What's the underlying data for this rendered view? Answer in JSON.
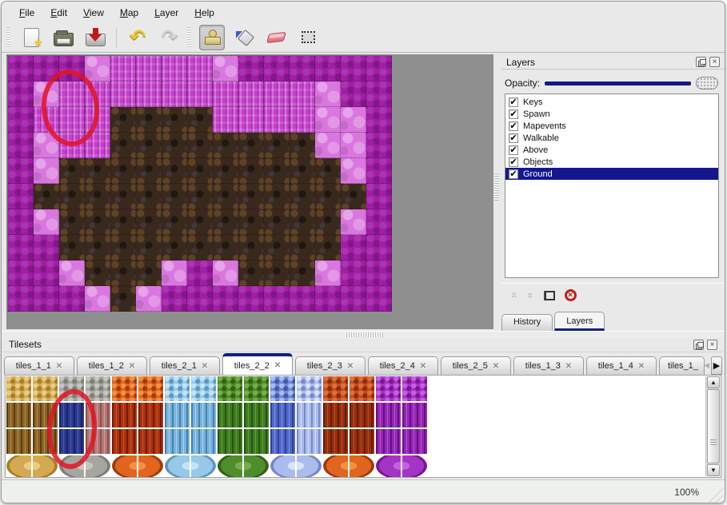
{
  "menu_bar": {
    "items": [
      {
        "label": "File"
      },
      {
        "label": "Edit"
      },
      {
        "label": "View"
      },
      {
        "label": "Map"
      },
      {
        "label": "Layer"
      },
      {
        "label": "Help"
      }
    ]
  },
  "toolbar": {
    "buttons": [
      {
        "name": "new-file",
        "icon": "new",
        "selected": false,
        "group": 1
      },
      {
        "name": "open-file",
        "icon": "open",
        "selected": false,
        "group": 1
      },
      {
        "name": "save-file",
        "icon": "save",
        "selected": false,
        "group": 1
      },
      {
        "name": "undo",
        "icon": "undo",
        "glyph": "↶",
        "selected": false,
        "group": 2
      },
      {
        "name": "redo",
        "icon": "redo",
        "glyph": "↷",
        "selected": false,
        "group": 2
      },
      {
        "name": "stamp-tool",
        "icon": "stamp",
        "selected": true,
        "group": 3
      },
      {
        "name": "fill-tool",
        "icon": "fill",
        "selected": false,
        "group": 3
      },
      {
        "name": "eraser-tool",
        "icon": "eraser",
        "selected": false,
        "group": 3
      },
      {
        "name": "select-tool",
        "icon": "select",
        "selected": false,
        "group": 3
      }
    ]
  },
  "map_view": {
    "background": "#8f8f8f",
    "tile_size": 32,
    "tile_colors": {
      "D": "#a01ea6",
      "M": "#c340ca",
      "L": "#d977df",
      "B": "#39291d"
    },
    "grid": [
      "DDDLMMMMLDDDDDD",
      "DLMMMMMMMMMMLDD",
      "DMMMBBBBMMMMLLD",
      "DLMMBBBBBBBBLLD",
      "DLBBBBBBBBBBBLD",
      "DBBBBBBBBBBBBBD",
      "DLBBBBBBBBBBBLD",
      "DDBBBBBBBBBBBDD",
      "DDLBBBLDLBBBLDD",
      "DDDLBLDDDDDDDDD"
    ],
    "annotation_color": "#e01426"
  },
  "layers_panel": {
    "title": "Layers",
    "opacity_label": "Opacity:",
    "layers": [
      {
        "label": "Keys",
        "checked": true,
        "selected": false
      },
      {
        "label": "Spawn",
        "checked": true,
        "selected": false
      },
      {
        "label": "Mapevents",
        "checked": true,
        "selected": false
      },
      {
        "label": "Walkable",
        "checked": true,
        "selected": false
      },
      {
        "label": "Above",
        "checked": true,
        "selected": false
      },
      {
        "label": "Objects",
        "checked": true,
        "selected": false
      },
      {
        "label": "Ground",
        "checked": true,
        "selected": true
      }
    ],
    "selection_color": "#13178c",
    "bottom_tabs": [
      {
        "label": "History",
        "active": false
      },
      {
        "label": "Layers",
        "active": true
      }
    ]
  },
  "tilesets_panel": {
    "title": "Tilesets",
    "tabs": [
      {
        "label": "tiles_1_1",
        "active": false,
        "truncated": false
      },
      {
        "label": "tiles_1_2",
        "active": false,
        "truncated": false
      },
      {
        "label": "tiles_2_1",
        "active": false,
        "truncated": false
      },
      {
        "label": "tiles_2_2",
        "active": true,
        "truncated": false
      },
      {
        "label": "tiles_2_3",
        "active": false,
        "truncated": false
      },
      {
        "label": "tiles_2_4",
        "active": false,
        "truncated": false
      },
      {
        "label": "tiles_2_5",
        "active": false,
        "truncated": false
      },
      {
        "label": "tiles_1_3",
        "active": false,
        "truncated": false
      },
      {
        "label": "tiles_1_4",
        "active": false,
        "truncated": false
      },
      {
        "label": "tiles_1_",
        "active": false,
        "truncated": true
      }
    ],
    "palette": {
      "tan": [
        "#d4a952",
        "#e8cc84",
        "#a87f2c"
      ],
      "gray": [
        "#a6a6a0",
        "#c6c6c0",
        "#7e7e78"
      ],
      "orange": [
        "#e0651e",
        "#f49040",
        "#a03c0a"
      ],
      "sky": [
        "#96c9e8",
        "#c4e4f4",
        "#5e98c0"
      ],
      "green": [
        "#4e8c2c",
        "#74ae4a",
        "#336016"
      ],
      "crystal": [
        "#7088d8",
        "#a8bcf0",
        "#4258a8"
      ],
      "crystalLt": [
        "#aabcee",
        "#d8e2f8",
        "#7888c8"
      ],
      "rust": [
        "#c44d1e",
        "#e07038",
        "#8c2c0c"
      ],
      "purple": [
        "#a434c4",
        "#c85ee0",
        "#7c1496"
      ],
      "brown": [
        "#8a6426",
        "#b08c44",
        "#5a3c10"
      ],
      "navyTile": [
        "#2c3a90",
        "#4a5ab4",
        "#1a2260"
      ],
      "mauve": [
        "#b27876",
        "#d0a0a0",
        "#8a5050"
      ],
      "flame": [
        "#aa3212",
        "#d05520",
        "#701c06"
      ],
      "ice": [
        "#78b2dc",
        "#aad4ec",
        "#4680ac"
      ],
      "vine": [
        "#3e7c20",
        "#5ea03a",
        "#285410"
      ],
      "crystalDk": [
        "#5068c8",
        "#7c92e0",
        "#303f96"
      ],
      "rustDk": [
        "#962f10",
        "#bc4c20",
        "#661c06"
      ],
      "web": [
        "#9426b4",
        "#c050dc",
        "#661080"
      ]
    },
    "tile_rows": [
      [
        "tan",
        "tan",
        "gray",
        "gray",
        "orange",
        "orange",
        "sky",
        "sky",
        "green",
        "green",
        "crystal",
        "crystalLt",
        "rust",
        "rust",
        "purple",
        "purple"
      ],
      [
        "brown",
        "brown",
        "navyTile",
        "mauve",
        "flame",
        "flame",
        "ice",
        "ice",
        "vine",
        "vine",
        "crystalDk",
        "crystalLt",
        "rustDk",
        "rustDk",
        "web",
        "web"
      ],
      [
        "brown",
        "brown",
        "navyTile",
        "mauve",
        "flame",
        "flame",
        "ice",
        "ice",
        "vine",
        "vine",
        "crystalDk",
        "crystalLt",
        "rustDk",
        "rustDk",
        "web",
        "web"
      ],
      [
        "tan",
        "tan",
        "gray",
        "gray",
        "orange",
        "orange",
        "sky",
        "sky",
        "green",
        "green",
        "crystalLt",
        "crystalLt",
        "orange",
        "orange",
        "purple",
        "purple"
      ]
    ],
    "annotation_color": "#e01426"
  },
  "status_bar": {
    "zoom": "100%"
  }
}
